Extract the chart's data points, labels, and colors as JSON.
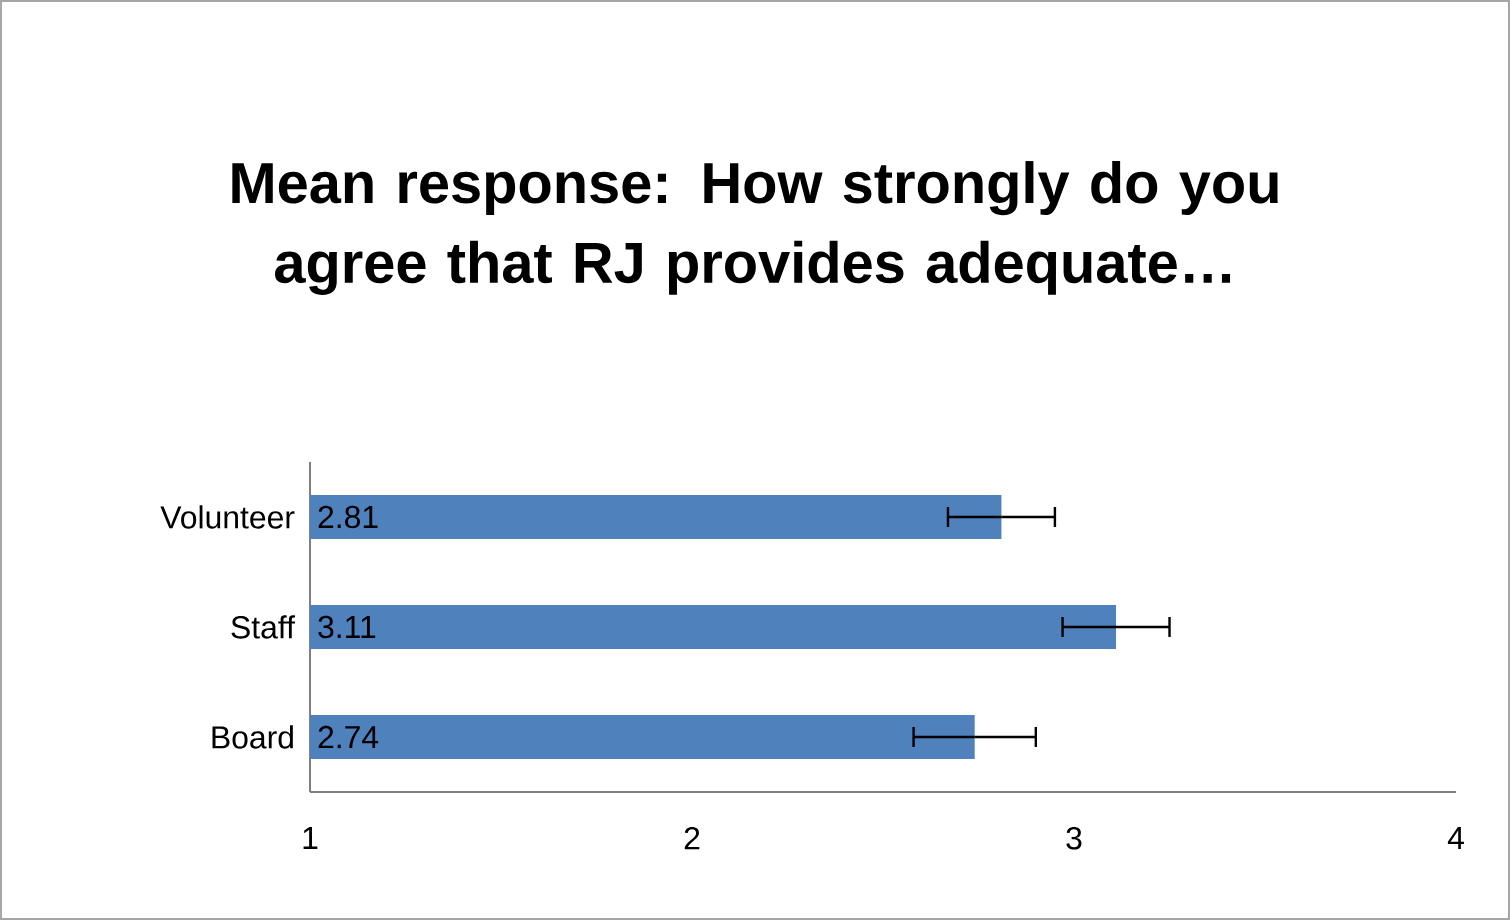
{
  "chart_data": {
    "type": "bar",
    "orientation": "horizontal",
    "title": "Mean response: How strongly do you agree that RJ provides adequate…",
    "categories": [
      "Volunteer",
      "Staff",
      "Board"
    ],
    "values": [
      2.81,
      3.11,
      2.74
    ],
    "errors": [
      0.14,
      0.14,
      0.16
    ],
    "color": "#4f81bd",
    "xlim": [
      1,
      4
    ],
    "xticks": [
      1,
      2,
      3,
      4
    ],
    "data_labels": true
  }
}
